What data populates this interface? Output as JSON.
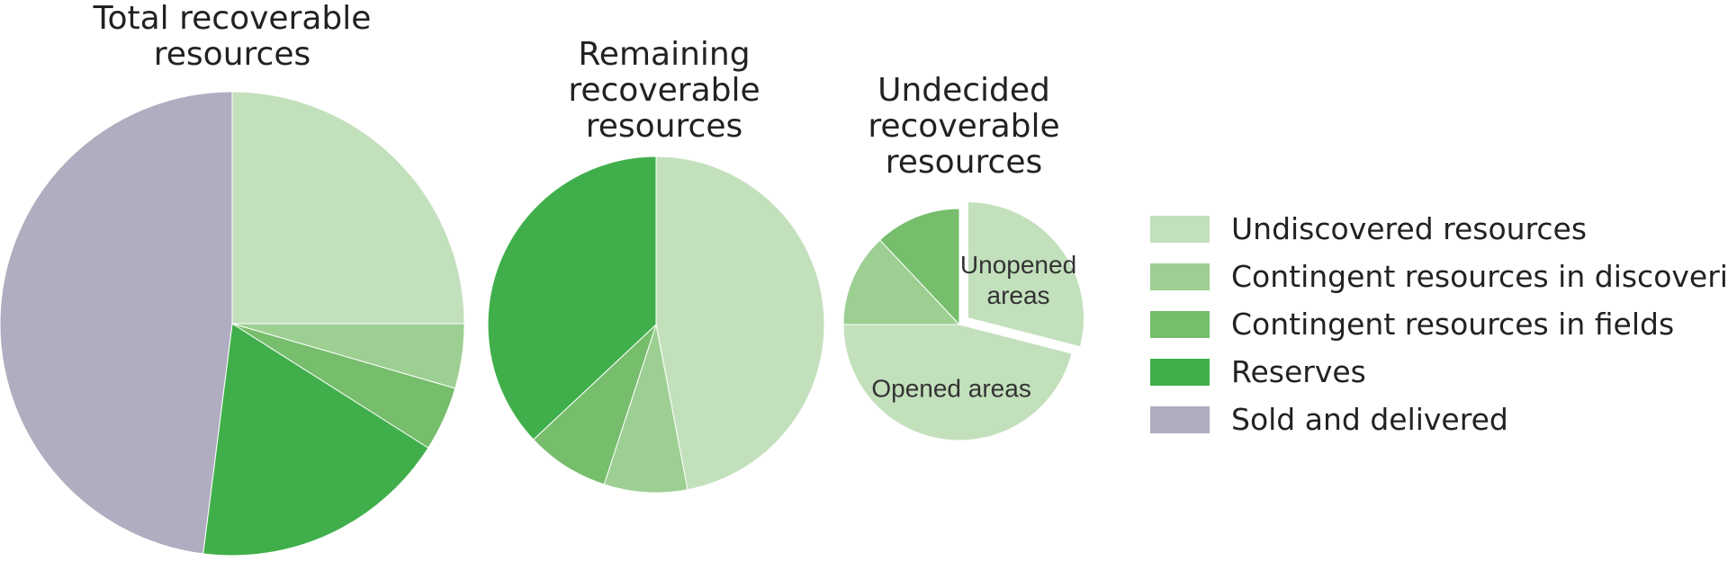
{
  "chart_data": [
    {
      "type": "pie",
      "title": "Total recoverable resources",
      "title_lines": [
        "Total recoverable",
        "resources"
      ],
      "slices": [
        {
          "category": "Undiscovered resources",
          "value": 25
        },
        {
          "category": "Contingent resources in discoveries",
          "value": 4.5
        },
        {
          "category": "Contingent resources in fields",
          "value": 4.5
        },
        {
          "category": "Reserves",
          "value": 18
        },
        {
          "category": "Sold and delivered",
          "value": 48
        }
      ]
    },
    {
      "type": "pie",
      "title": "Remaining recoverable resources",
      "title_lines": [
        "Remaining",
        "recoverable",
        "resources"
      ],
      "slices": [
        {
          "category": "Undiscovered resources",
          "value": 47
        },
        {
          "category": "Contingent resources in discoveries",
          "value": 8
        },
        {
          "category": "Contingent resources in fields",
          "value": 8
        },
        {
          "category": "Reserves",
          "value": 37
        }
      ]
    },
    {
      "type": "pie",
      "title": "Undecided recoverable resources",
      "title_lines": [
        "Undecided",
        "recoverable",
        "resources"
      ],
      "slices": [
        {
          "category": "Undiscovered resources",
          "value": 29,
          "label": [
            "Unopened",
            "areas"
          ],
          "exploded": true
        },
        {
          "category": "Undiscovered resources",
          "value": 46,
          "label": [
            "Opened areas"
          ],
          "exploded": false
        },
        {
          "category": "Contingent resources in discoveries",
          "value": 13,
          "exploded": false
        },
        {
          "category": "Contingent resources in fields",
          "value": 12,
          "exploded": false
        }
      ]
    }
  ],
  "legend": {
    "position": "right",
    "items": [
      {
        "label": "Undiscovered resources",
        "color": "#c3e0bc"
      },
      {
        "label": "Contingent resources in discoveries",
        "color": "#9dcf92"
      },
      {
        "label": "Contingent resources in fields",
        "color": "#76bd6c"
      },
      {
        "label": "Reserves",
        "color": "#40af4b"
      },
      {
        "label": "Sold and delivered",
        "color": "#afadbf"
      }
    ]
  }
}
